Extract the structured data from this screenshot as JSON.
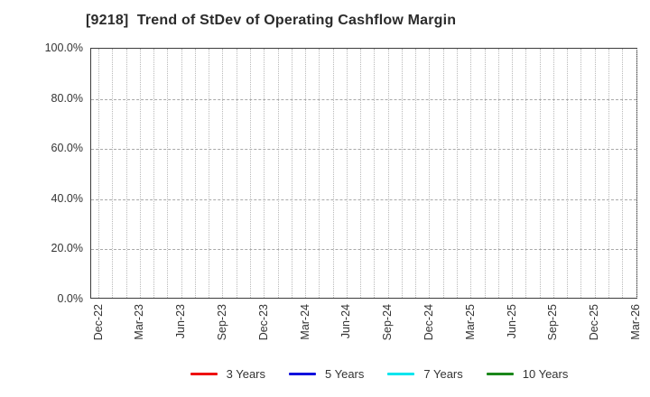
{
  "header": {
    "title": "[9218]  Trend of StDev of Operating Cashflow Margin"
  },
  "chart_data": {
    "type": "line",
    "title": "[9218]  Trend of StDev of Operating Cashflow Margin",
    "xlabel": "",
    "ylabel": "",
    "x_tick_labels": [
      "Dec-22",
      "Mar-23",
      "Jun-23",
      "Sep-23",
      "Dec-23",
      "Mar-24",
      "Jun-24",
      "Sep-24",
      "Dec-24",
      "Mar-25",
      "Jun-25",
      "Sep-25",
      "Dec-25",
      "Mar-26"
    ],
    "x_minor_gridlines_per_major": 3,
    "n_vertical_gridlines": 40,
    "y_tick_values": [
      0,
      20,
      40,
      60,
      80,
      100
    ],
    "y_tick_labels": [
      "0.0%",
      "20.0%",
      "40.0%",
      "60.0%",
      "80.0%",
      "100.0%"
    ],
    "ylim": [
      0,
      100
    ],
    "grid": true,
    "legend_position": "bottom",
    "series": [
      {
        "name": "3 Years",
        "color": "#ee1111",
        "values": []
      },
      {
        "name": "5 Years",
        "color": "#1111dd",
        "values": []
      },
      {
        "name": "7 Years",
        "color": "#00e5ee",
        "values": []
      },
      {
        "name": "10 Years",
        "color": "#1a871a",
        "values": []
      }
    ]
  }
}
